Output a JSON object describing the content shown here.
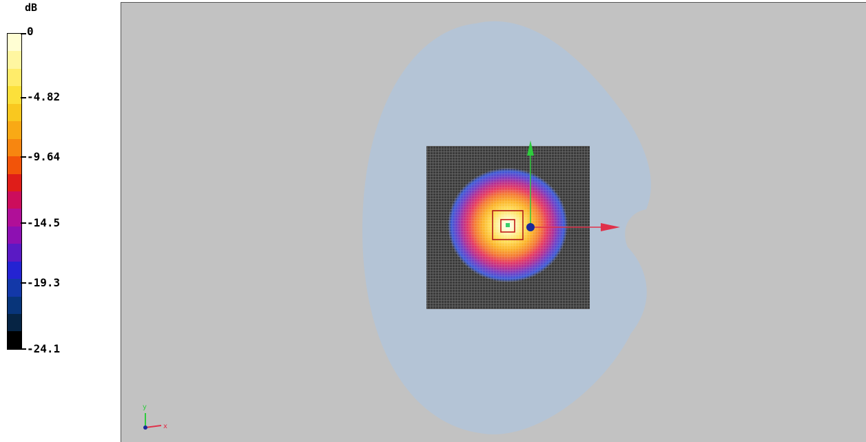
{
  "legend": {
    "unit": "dB",
    "ticks": [
      "0",
      "-4.82",
      "-9.64",
      "-14.5",
      "-19.3",
      "-24.1"
    ],
    "colors": [
      "#fffed3",
      "#fff6a0",
      "#ffec6a",
      "#fce03a",
      "#f9c81f",
      "#f9a915",
      "#f78610",
      "#f25409",
      "#df1d19",
      "#cc0d5c",
      "#b00f98",
      "#8d10b2",
      "#5a1ac4",
      "#2423d2",
      "#1338a8",
      "#08357a",
      "#062444",
      "#000000"
    ]
  },
  "viewport": {
    "background": "#c2c2c2",
    "field_halo_color": "#b4c4d6",
    "mesh_color": "#3a3a3a",
    "x_axis_color": "#e0314a",
    "y_axis_color": "#2ecc3d",
    "origin_color": "#1a2a9a",
    "triad": {
      "x_label": "x",
      "y_label": "y"
    }
  }
}
